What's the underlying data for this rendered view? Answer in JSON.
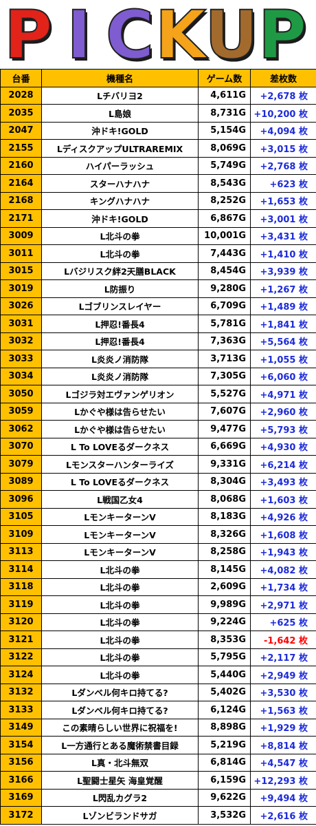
{
  "banner": {
    "text": "PICKUP",
    "letters": [
      "P",
      "I",
      "C",
      "K",
      "U",
      "P"
    ],
    "colors": [
      "#e2231a",
      "#7f5ccf",
      "#7f5ccf",
      "#f4a31a",
      "#a36a2d",
      "#1e9a45"
    ]
  },
  "table": {
    "headers": [
      "台番",
      "機種名",
      "ゲーム数",
      "差枚数"
    ],
    "rows": [
      {
        "num": "2028",
        "model": "Lチバリヨ2",
        "games": "4,611G",
        "diff": "+2,678 枚"
      },
      {
        "num": "2035",
        "model": "L島娘",
        "games": "8,731G",
        "diff": "+10,200 枚"
      },
      {
        "num": "2047",
        "model": "沖ドキ!GOLD",
        "games": "5,154G",
        "diff": "+4,094 枚"
      },
      {
        "num": "2155",
        "model": "LディスクアップULTRAREMIX",
        "games": "8,069G",
        "diff": "+3,015 枚"
      },
      {
        "num": "2160",
        "model": "ハイパーラッシュ",
        "games": "5,749G",
        "diff": "+2,768 枚"
      },
      {
        "num": "2164",
        "model": "スターハナハナ",
        "games": "8,543G",
        "diff": "+623 枚"
      },
      {
        "num": "2168",
        "model": "キングハナハナ",
        "games": "8,252G",
        "diff": "+1,653 枚"
      },
      {
        "num": "2171",
        "model": "沖ドキ!GOLD",
        "games": "6,867G",
        "diff": "+3,001 枚"
      },
      {
        "num": "3009",
        "model": "L北斗の拳",
        "games": "10,001G",
        "diff": "+3,431 枚"
      },
      {
        "num": "3011",
        "model": "L北斗の拳",
        "games": "7,443G",
        "diff": "+1,410 枚"
      },
      {
        "num": "3015",
        "model": "Lバジリスク絆2天膳BLACK",
        "games": "8,454G",
        "diff": "+3,939 枚"
      },
      {
        "num": "3019",
        "model": "L防振り",
        "games": "9,280G",
        "diff": "+1,267 枚"
      },
      {
        "num": "3026",
        "model": "Lゴブリンスレイヤー",
        "games": "6,709G",
        "diff": "+1,489 枚"
      },
      {
        "num": "3031",
        "model": "L押忍!番長4",
        "games": "5,781G",
        "diff": "+1,841 枚"
      },
      {
        "num": "3032",
        "model": "L押忍!番長4",
        "games": "7,363G",
        "diff": "+5,564 枚"
      },
      {
        "num": "3033",
        "model": "L炎炎ノ消防隊",
        "games": "3,713G",
        "diff": "+1,055 枚"
      },
      {
        "num": "3034",
        "model": "L炎炎ノ消防隊",
        "games": "7,305G",
        "diff": "+6,060 枚"
      },
      {
        "num": "3050",
        "model": "Lゴジラ対エヴァンゲリオン",
        "games": "5,527G",
        "diff": "+4,971 枚"
      },
      {
        "num": "3059",
        "model": "Lかぐや様は告らせたい",
        "games": "7,607G",
        "diff": "+2,960 枚"
      },
      {
        "num": "3062",
        "model": "Lかぐや様は告らせたい",
        "games": "9,477G",
        "diff": "+5,793 枚"
      },
      {
        "num": "3070",
        "model": "L To LOVEるダークネス",
        "games": "6,669G",
        "diff": "+4,930 枚"
      },
      {
        "num": "3079",
        "model": "Lモンスターハンターライズ",
        "games": "9,331G",
        "diff": "+6,214 枚"
      },
      {
        "num": "3089",
        "model": "L To LOVEるダークネス",
        "games": "8,304G",
        "diff": "+3,493 枚"
      },
      {
        "num": "3096",
        "model": "L戦国乙女4",
        "games": "8,068G",
        "diff": "+1,603 枚"
      },
      {
        "num": "3105",
        "model": "LモンキーターンV",
        "games": "8,183G",
        "diff": "+4,926 枚"
      },
      {
        "num": "3109",
        "model": "LモンキーターンV",
        "games": "8,326G",
        "diff": "+1,608 枚"
      },
      {
        "num": "3113",
        "model": "LモンキーターンV",
        "games": "8,258G",
        "diff": "+1,943 枚"
      },
      {
        "num": "3114",
        "model": "L北斗の拳",
        "games": "8,145G",
        "diff": "+4,082 枚"
      },
      {
        "num": "3118",
        "model": "L北斗の拳",
        "games": "2,609G",
        "diff": "+1,734 枚"
      },
      {
        "num": "3119",
        "model": "L北斗の拳",
        "games": "9,989G",
        "diff": "+2,971 枚"
      },
      {
        "num": "3120",
        "model": "L北斗の拳",
        "games": "9,224G",
        "diff": "+625 枚"
      },
      {
        "num": "3121",
        "model": "L北斗の拳",
        "games": "8,353G",
        "diff": "-1,642 枚",
        "negative": true
      },
      {
        "num": "3122",
        "model": "L北斗の拳",
        "games": "5,795G",
        "diff": "+2,117 枚"
      },
      {
        "num": "3124",
        "model": "L北斗の拳",
        "games": "5,440G",
        "diff": "+2,949 枚"
      },
      {
        "num": "3132",
        "model": "Lダンベル何キロ持てる?",
        "games": "5,402G",
        "diff": "+3,530 枚"
      },
      {
        "num": "3133",
        "model": "Lダンベル何キロ持てる?",
        "games": "6,124G",
        "diff": "+1,563 枚"
      },
      {
        "num": "3149",
        "model": "この素晴らしい世界に祝福を!",
        "games": "8,898G",
        "diff": "+1,929 枚"
      },
      {
        "num": "3154",
        "model": "L一方通行とある魔術禁書目録",
        "games": "5,219G",
        "diff": "+8,814 枚"
      },
      {
        "num": "3156",
        "model": "L真・北斗無双",
        "games": "6,814G",
        "diff": "+4,547 枚"
      },
      {
        "num": "3166",
        "model": "L聖闘士星矢 海皇覚醒",
        "games": "6,159G",
        "diff": "+12,293 枚"
      },
      {
        "num": "3169",
        "model": "L閃乱カグラ2",
        "games": "9,622G",
        "diff": "+9,494 枚"
      },
      {
        "num": "3172",
        "model": "Lゾンビランドサガ",
        "games": "3,532G",
        "diff": "+2,616 枚"
      }
    ]
  }
}
